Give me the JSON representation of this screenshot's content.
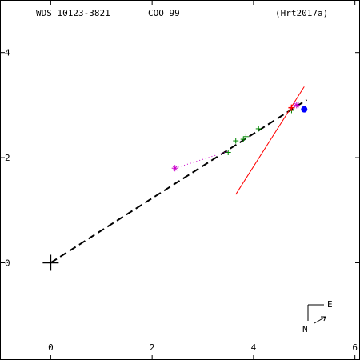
{
  "header": {
    "wds": "WDS 10123-3821",
    "code": "COO  99",
    "ref": "(Hrt2017a)"
  },
  "compass": {
    "east": "E",
    "north": "N"
  },
  "chart_data": {
    "type": "scatter",
    "title": "",
    "xlabel": "",
    "ylabel": "",
    "xlim": [
      -1.0,
      6.1
    ],
    "ylim": [
      -1.85,
      5.0
    ],
    "x_ticks": [
      0,
      2,
      4,
      6
    ],
    "y_ticks": [
      0,
      2,
      4
    ],
    "x_tick_labels": [
      "0",
      "2",
      "4",
      "6"
    ],
    "y_tick_labels": [
      "0",
      "2",
      "4"
    ],
    "grid": false,
    "primary": {
      "x": 0,
      "y": 0,
      "marker": "large-plus",
      "color": "#000000"
    },
    "orbit_line": {
      "from": [
        0.0,
        0.0
      ],
      "to": [
        5.05,
        3.1
      ],
      "style": "dashed",
      "color": "#000000"
    },
    "pa_line": {
      "from": [
        3.65,
        1.3
      ],
      "to": [
        5.0,
        3.35
      ],
      "color": "#ff0000"
    },
    "first_obs": {
      "x": 2.45,
      "y": 1.8,
      "marker": "asterisk",
      "color": "#cc00cc"
    },
    "residual_link": {
      "from": [
        2.45,
        1.8
      ],
      "to": [
        3.5,
        2.12
      ],
      "style": "dotted",
      "color": "#cc00cc"
    },
    "observations": [
      {
        "x": 3.5,
        "y": 2.1
      },
      {
        "x": 3.65,
        "y": 2.32
      },
      {
        "x": 3.8,
        "y": 2.35
      },
      {
        "x": 3.85,
        "y": 2.4
      },
      {
        "x": 4.1,
        "y": 2.55
      },
      {
        "x": 4.75,
        "y": 2.9
      }
    ],
    "observation_color": "#008800",
    "recent_obs": {
      "x": 4.75,
      "y": 2.95,
      "marker": "plus",
      "color": "#ff0000"
    },
    "latest_obs": {
      "x": 4.85,
      "y": 3.0,
      "marker": "asterisk",
      "color": "#cc00cc"
    },
    "predicted": {
      "x": 5.0,
      "y": 2.92,
      "marker": "filled-circle",
      "color": "#0000ff"
    }
  }
}
